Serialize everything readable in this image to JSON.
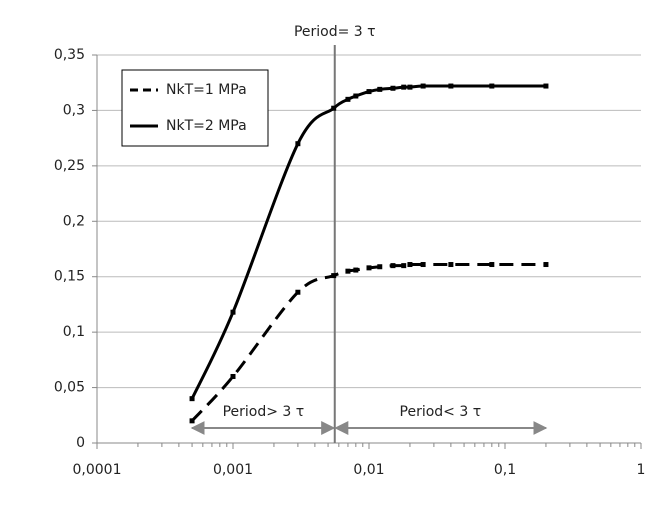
{
  "chart_data": {
    "type": "line",
    "x_scale": "log",
    "x": [
      0.0005,
      0.001,
      0.003,
      0.0055,
      0.007,
      0.008,
      0.01,
      0.012,
      0.015,
      0.018,
      0.02,
      0.025,
      0.04,
      0.08,
      0.2
    ],
    "series": [
      {
        "name": "NkT=1 MPa",
        "color": "#000000",
        "dash": true,
        "values": [
          0.02,
          0.06,
          0.136,
          0.151,
          0.155,
          0.156,
          0.158,
          0.159,
          0.16,
          0.16,
          0.161,
          0.161,
          0.161,
          0.161,
          0.161
        ]
      },
      {
        "name": "NkT=2 MPa",
        "color": "#000000",
        "dash": false,
        "values": [
          0.04,
          0.118,
          0.27,
          0.302,
          0.31,
          0.313,
          0.317,
          0.319,
          0.32,
          0.321,
          0.321,
          0.322,
          0.322,
          0.322,
          0.322
        ]
      }
    ],
    "xlim": [
      0.0001,
      1
    ],
    "xticks": [
      {
        "value": 0.0001,
        "label": "0,0001"
      },
      {
        "value": 0.001,
        "label": "0,001"
      },
      {
        "value": 0.01,
        "label": "0,01"
      },
      {
        "value": 0.1,
        "label": "0,1"
      },
      1
    ],
    "ylim": [
      0,
      0.35
    ],
    "yticks": [
      0,
      {
        "value": 0.05,
        "label": "0,05"
      },
      {
        "value": 0.1,
        "label": "0,1"
      },
      {
        "value": 0.15,
        "label": "0,15"
      },
      {
        "value": 0.2,
        "label": "0,2"
      },
      {
        "value": 0.25,
        "label": "0,25"
      },
      {
        "value": 0.3,
        "label": "0,3"
      },
      {
        "value": 0.35,
        "label": "0,35"
      }
    ],
    "grid": true,
    "legend": "upper left",
    "reference_line": {
      "x": 0.0056,
      "label": "Period= 3 τ"
    },
    "annotations": [
      {
        "text": "Period> 3 τ"
      },
      {
        "text": "Period< 3 τ"
      }
    ]
  }
}
